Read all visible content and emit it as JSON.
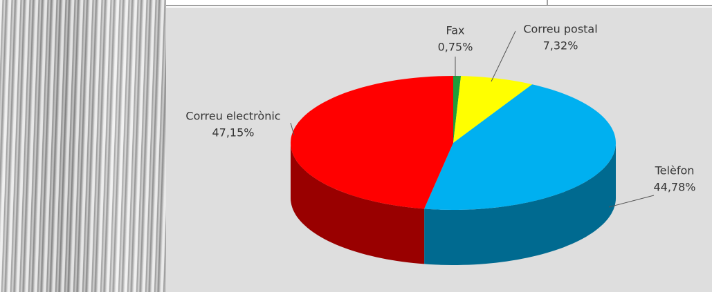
{
  "chart_data": {
    "type": "pie",
    "categories": [
      "Fax",
      "Correu postal",
      "Telèfon",
      "Correu electrònic"
    ],
    "values": [
      0.75,
      7.32,
      44.78,
      47.15
    ],
    "value_labels": [
      "0,75%",
      "7,32%",
      "44,78%",
      "47,15%"
    ],
    "colors": [
      "#1f9e3c",
      "#ffff00",
      "#00b0f0",
      "#ff0000"
    ]
  }
}
